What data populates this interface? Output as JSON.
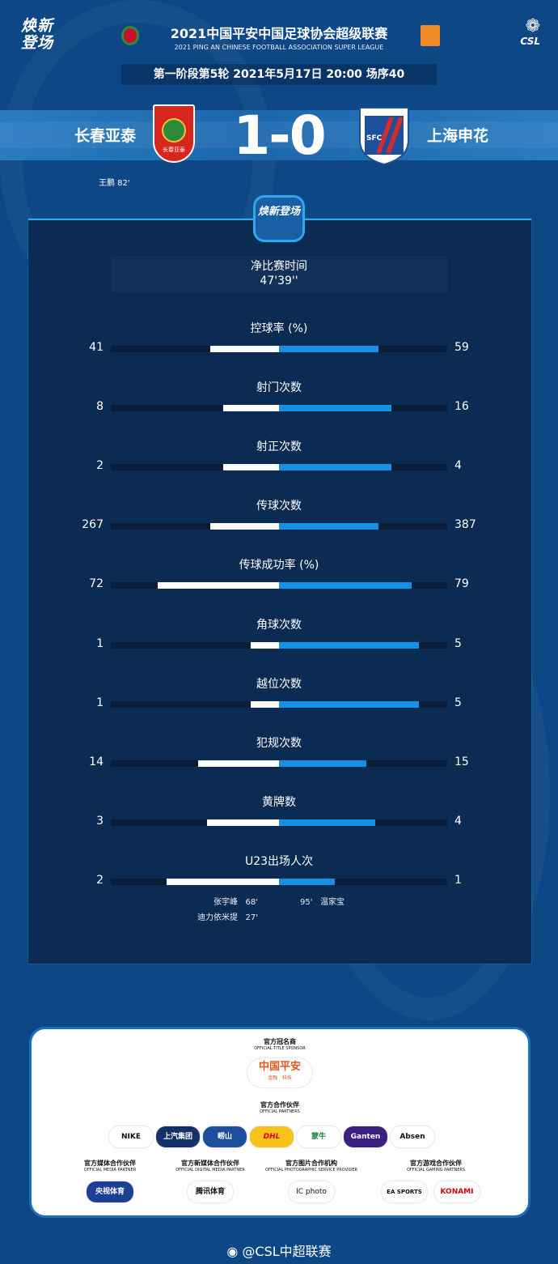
{
  "header": {
    "campaign_logo": "焕新登场",
    "league_title_cn": "2021中国平安中国足球协会超级联赛",
    "league_title_en": "2021 PING AN CHINESE FOOTBALL ASSOCIATION SUPER LEAGUE",
    "csl_logo": "CSL",
    "round_info": "第一阶段第5轮  2021年5月17日 20:00 场序40"
  },
  "match": {
    "home_team": "长春亚泰",
    "away_team": "上海申花",
    "score": "1-0",
    "home_crest_text": "长春亚泰",
    "away_crest_text": "SFC",
    "home_scorers": "王鹏  82'"
  },
  "panel": {
    "badge": "焕新登场",
    "net_time_label": "净比赛时间",
    "net_time_value": "47'39''",
    "colors": {
      "home": "#ffffff",
      "away": "#1490e6",
      "track": "#0a1d3b"
    },
    "stats": [
      {
        "label": "控球率 (%)",
        "home": "41",
        "away": "59",
        "home_fill": 0.41,
        "away_fill": 0.59
      },
      {
        "label": "射门次数",
        "home": "8",
        "away": "16",
        "home_fill": 0.33,
        "away_fill": 0.67
      },
      {
        "label": "射正次数",
        "home": "2",
        "away": "4",
        "home_fill": 0.33,
        "away_fill": 0.67
      },
      {
        "label": "传球次数",
        "home": "267",
        "away": "387",
        "home_fill": 0.41,
        "away_fill": 0.59
      },
      {
        "label": "传球成功率 (%)",
        "home": "72",
        "away": "79",
        "home_fill": 0.72,
        "away_fill": 0.79
      },
      {
        "label": "角球次数",
        "home": "1",
        "away": "5",
        "home_fill": 0.17,
        "away_fill": 0.83
      },
      {
        "label": "越位次数",
        "home": "1",
        "away": "5",
        "home_fill": 0.17,
        "away_fill": 0.83
      },
      {
        "label": "犯规次数",
        "home": "14",
        "away": "15",
        "home_fill": 0.48,
        "away_fill": 0.52
      },
      {
        "label": "黄牌数",
        "home": "3",
        "away": "4",
        "home_fill": 0.43,
        "away_fill": 0.57
      },
      {
        "label": "U23出场人次",
        "home": "2",
        "away": "1",
        "home_fill": 0.67,
        "away_fill": 0.33
      }
    ],
    "u23_home": [
      {
        "name": "张宇峰",
        "min": "68'"
      },
      {
        "name": "迪力依米提",
        "min": "27'"
      }
    ],
    "u23_away": [
      {
        "name": "温家宝",
        "min": "95'"
      }
    ]
  },
  "sponsors": {
    "title_sponsor_cn": "官方冠名商",
    "title_sponsor_en": "OFFICIAL TITLE SPONSOR",
    "title_sponsor": "中国平安",
    "title_sponsor_sub": "金融 · 科技",
    "partners_cn": "官方合作伙伴",
    "partners_en": "OFFICIAL PARTNERS",
    "partners": [
      "NIKE",
      "上汽集团",
      "崂山",
      "DHL",
      "蒙牛",
      "Ganten",
      "Absen"
    ],
    "groups": [
      {
        "cn": "官方媒体合作伙伴",
        "en": "OFFICIAL MEDIA PARTNER",
        "logos": [
          "央视体育"
        ]
      },
      {
        "cn": "官方新媒体合作伙伴",
        "en": "OFFICIAL DIGITAL MEDIA PARTNER",
        "logos": [
          "腾讯体育"
        ]
      },
      {
        "cn": "官方图片合作机构",
        "en": "OFFICIAL PHOTOGRAPHIC SERVICE PROVIDER",
        "logos": [
          "IC photo"
        ]
      },
      {
        "cn": "官方游戏合作伙伴",
        "en": "OFFICIAL GAMING PARTNERS",
        "logos": [
          "EA SPORTS",
          "KONAMI"
        ]
      }
    ]
  },
  "footer": {
    "weibo": "@CSL中超联赛"
  }
}
